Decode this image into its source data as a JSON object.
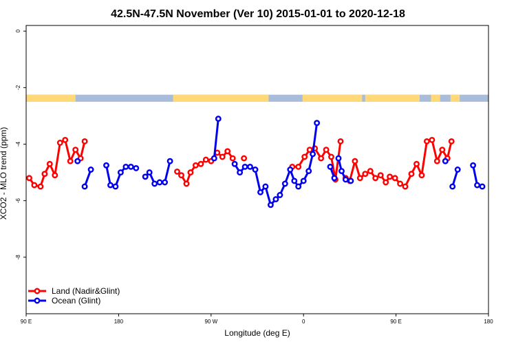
{
  "chart_data": {
    "type": "line",
    "title": "42.5N-47.5N November (Ver 10)   2015-01-01 to 2020-12-18",
    "xlabel": "Longitude (deg E)",
    "ylabel": "XCO2 - MLO trend (ppm)",
    "x_ticks": [
      {
        "value": 90,
        "label": "90 E"
      },
      {
        "value": 180,
        "label": "180"
      },
      {
        "value": 270,
        "label": "90 W"
      },
      {
        "value": 360,
        "label": "0"
      },
      {
        "value": 450,
        "label": "90 E"
      },
      {
        "value": 540,
        "label": "180"
      }
    ],
    "y_ticks": [
      {
        "value": 0,
        "label": "0"
      },
      {
        "value": -2,
        "label": "-2"
      },
      {
        "value": -4,
        "label": "-4"
      },
      {
        "value": -6,
        "label": "-6"
      },
      {
        "value": -8,
        "label": "-8"
      }
    ],
    "xlim": [
      90,
      540
    ],
    "ylim": [
      -10,
      0.2
    ],
    "grid": false,
    "legend_position": "bottom-left",
    "colors": {
      "land": "#ff0000",
      "ocean": "#0000ee",
      "land_strip": "#ffd878",
      "ocean_strip": "#a9bcd9",
      "axis": "#000000"
    },
    "series": [
      {
        "name": "Land (Nadir&Glint)",
        "color": "#ff0000",
        "segments": [
          [
            [
              93,
              -5.2
            ],
            [
              98,
              -5.45
            ],
            [
              104,
              -5.5
            ],
            [
              108,
              -5.05
            ],
            [
              113,
              -4.7
            ],
            [
              118,
              -5.1
            ],
            [
              123,
              -3.95
            ],
            [
              128,
              -3.85
            ],
            [
              133,
              -4.6
            ],
            [
              138,
              -4.2
            ],
            [
              143,
              -4.5
            ],
            [
              147,
              -3.9
            ]
          ],
          [
            [
              237,
              -4.97
            ],
            [
              241,
              -5.1
            ],
            [
              246,
              -5.4
            ],
            [
              250,
              -5.0
            ],
            [
              255,
              -4.75
            ],
            [
              260,
              -4.7
            ],
            [
              265,
              -4.55
            ],
            [
              270,
              -4.6
            ],
            [
              276,
              -4.3
            ],
            [
              281,
              -4.45
            ],
            [
              286,
              -4.25
            ],
            [
              291,
              -4.5
            ]
          ],
          [
            [
              302,
              -4.5
            ]
          ],
          [
            [
              349,
              -4.8
            ],
            [
              355,
              -4.8
            ],
            [
              361,
              -4.45
            ],
            [
              366,
              -4.2
            ],
            [
              371,
              -4.15
            ],
            [
              377,
              -4.5
            ],
            [
              382,
              -4.2
            ],
            [
              387,
              -4.45
            ],
            [
              391,
              -5.25
            ],
            [
              396,
              -3.9
            ]
          ],
          [
            [
              401,
              -5.2
            ],
            [
              405,
              -5.3
            ],
            [
              410,
              -4.6
            ],
            [
              415,
              -5.2
            ],
            [
              420,
              -5.05
            ],
            [
              425,
              -4.95
            ],
            [
              430,
              -5.2
            ],
            [
              435,
              -5.1
            ],
            [
              440,
              -5.35
            ],
            [
              444,
              -5.15
            ],
            [
              449,
              -5.2
            ],
            [
              454,
              -5.4
            ],
            [
              459,
              -5.5
            ],
            [
              465,
              -5.05
            ],
            [
              470,
              -4.7
            ],
            [
              475,
              -5.1
            ],
            [
              480,
              -3.9
            ],
            [
              485,
              -3.85
            ],
            [
              490,
              -4.6
            ],
            [
              495,
              -4.2
            ],
            [
              500,
              -4.5
            ],
            [
              504,
              -3.9
            ]
          ]
        ]
      },
      {
        "name": "Ocean (Glint)",
        "color": "#0000ee",
        "segments": [
          [
            [
              140,
              -4.6
            ]
          ],
          [
            [
              147,
              -5.5
            ],
            [
              153,
              -4.9
            ]
          ],
          [
            [
              168,
              -4.75
            ],
            [
              172,
              -5.45
            ],
            [
              177,
              -5.5
            ],
            [
              182,
              -5.0
            ],
            [
              187,
              -4.8
            ],
            [
              192,
              -4.8
            ],
            [
              197,
              -4.85
            ]
          ],
          [
            [
              206,
              -5.15
            ],
            [
              210,
              -5.0
            ],
            [
              215,
              -5.4
            ],
            [
              220,
              -5.35
            ],
            [
              225,
              -5.35
            ],
            [
              230,
              -4.6
            ]
          ],
          [
            [
              273,
              -4.5
            ],
            [
              277,
              -3.1
            ]
          ],
          [
            [
              293,
              -4.7
            ],
            [
              298,
              -5.0
            ],
            [
              303,
              -4.8
            ],
            [
              308,
              -4.8
            ],
            [
              313,
              -4.9
            ],
            [
              318,
              -5.7
            ],
            [
              323,
              -5.5
            ],
            [
              328,
              -6.15
            ],
            [
              333,
              -5.95
            ],
            [
              337,
              -5.8
            ],
            [
              342,
              -5.4
            ],
            [
              347,
              -4.9
            ],
            [
              351,
              -5.3
            ],
            [
              355,
              -5.5
            ],
            [
              360,
              -5.3
            ],
            [
              365,
              -4.95
            ],
            [
              369,
              -4.35
            ],
            [
              373,
              -3.25
            ]
          ],
          [
            [
              386,
              -4.8
            ],
            [
              390,
              -5.2
            ]
          ],
          [
            [
              394,
              -4.5
            ],
            [
              397,
              -4.95
            ],
            [
              401,
              -5.25
            ],
            [
              406,
              -5.3
            ]
          ],
          [
            [
              498,
              -4.6
            ]
          ],
          [
            [
              505,
              -5.5
            ],
            [
              510,
              -4.9
            ]
          ],
          [
            [
              525,
              -4.75
            ],
            [
              529,
              -5.45
            ],
            [
              534,
              -5.5
            ]
          ]
        ]
      }
    ],
    "surface_strip": {
      "y_range": [
        -2.25,
        -2.5
      ],
      "land_x_ranges": [
        [
          90,
          138
        ],
        [
          233,
          326
        ],
        [
          359,
          417
        ],
        [
          420,
          473
        ],
        [
          484,
          493
        ],
        [
          503,
          512
        ]
      ]
    }
  }
}
